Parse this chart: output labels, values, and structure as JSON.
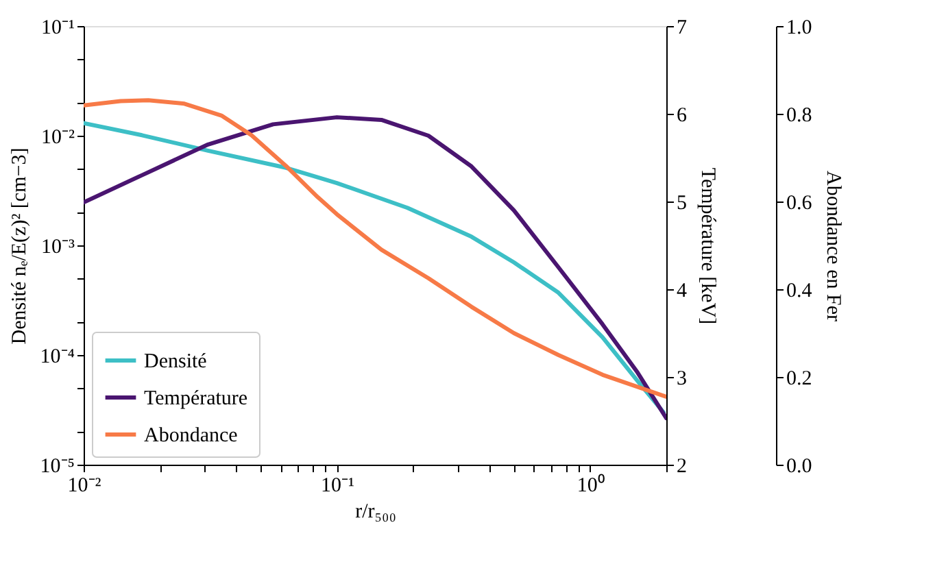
{
  "chart_data": {
    "type": "line",
    "xlabel": "r/r₅₀₀",
    "ylabel": "Densité nₑ/E(z)² [cm−3]",
    "y2label": "Température [keV]",
    "y3label": "Abondance en Fer",
    "log": "xy",
    "grid": false,
    "legend": "bottom left",
    "line_style": "solid",
    "marker": "none",
    "xlim": [
      0.01,
      2
    ],
    "xticks": [
      {
        "value": 0.01,
        "label": "10⁻²"
      },
      {
        "value": 0.02,
        "label": null
      },
      {
        "value": 0.03,
        "label": null
      },
      {
        "value": 0.04,
        "label": null
      },
      {
        "value": 0.05,
        "label": null
      },
      {
        "value": 0.06,
        "label": null
      },
      {
        "value": 0.07,
        "label": null
      },
      {
        "value": 0.08,
        "label": null
      },
      {
        "value": 0.09,
        "label": null
      },
      {
        "value": 0.1,
        "label": "10⁻¹"
      },
      {
        "value": 0.2,
        "label": null
      },
      {
        "value": 0.3,
        "label": null
      },
      {
        "value": 0.4,
        "label": null
      },
      {
        "value": 0.5,
        "label": null
      },
      {
        "value": 0.6,
        "label": null
      },
      {
        "value": 0.7,
        "label": null
      },
      {
        "value": 0.8,
        "label": null
      },
      {
        "value": 0.9,
        "label": null
      },
      {
        "value": 1,
        "label": "10⁰"
      },
      {
        "value": 2,
        "label": null
      }
    ],
    "ylim": [
      1e-05,
      0.1
    ],
    "yticks": [
      {
        "value": 1e-05,
        "label": "10⁻⁵"
      },
      {
        "value": 2e-05,
        "label": null
      },
      {
        "value": 5e-05,
        "label": null
      },
      {
        "value": 0.0001,
        "label": "10⁻⁴"
      },
      {
        "value": 0.0002,
        "label": null
      },
      {
        "value": 0.0005,
        "label": null
      },
      {
        "value": 0.001,
        "label": "10⁻³"
      },
      {
        "value": 0.002,
        "label": null
      },
      {
        "value": 0.005,
        "label": null
      },
      {
        "value": 0.01,
        "label": "10⁻²"
      },
      {
        "value": 0.02,
        "label": null
      },
      {
        "value": 0.05,
        "label": null
      },
      {
        "value": 0.1,
        "label": "10⁻¹"
      }
    ],
    "y2lim": [
      2,
      7
    ],
    "y2ticks": [
      2,
      3,
      4,
      5,
      6,
      7
    ],
    "y3lim": [
      0,
      1
    ],
    "y3ticks": [
      {
        "value": 0,
        "label": "0.0"
      },
      {
        "value": 0.2,
        "label": "0.2"
      },
      {
        "value": 0.4,
        "label": "0.4"
      },
      {
        "value": 0.6,
        "label": "0.6"
      },
      {
        "value": 0.8,
        "label": "0.8"
      },
      {
        "value": 1,
        "label": "1.0"
      }
    ],
    "series": [
      {
        "name": "Densité",
        "color": "#3dbfc6",
        "axis": "y",
        "x": [
          0.01,
          0.017,
          0.031,
          0.063,
          0.1,
          0.19,
          0.34,
          0.5,
          0.75,
          1.12,
          1.54,
          1.95
        ],
        "values": [
          0.013,
          0.0101,
          0.0073,
          0.0051,
          0.0037,
          0.0022,
          0.0012,
          0.0007,
          0.00037,
          0.000145,
          5.8e-05,
          3e-05
        ]
      },
      {
        "name": "Température",
        "color": "#4a1570",
        "axis": "y2",
        "x": [
          0.01,
          0.017,
          0.031,
          0.056,
          0.1,
          0.15,
          0.23,
          0.34,
          0.5,
          0.75,
          1.12,
          1.54,
          2.0
        ],
        "values": [
          4.99,
          5.3,
          5.65,
          5.88,
          5.96,
          5.93,
          5.75,
          5.4,
          4.9,
          4.25,
          3.6,
          3.05,
          2.53
        ]
      },
      {
        "name": "Abondance",
        "color": "#f77a47",
        "axis": "y3",
        "x": [
          0.01,
          0.014,
          0.018,
          0.025,
          0.035,
          0.046,
          0.063,
          0.084,
          0.1,
          0.15,
          0.23,
          0.34,
          0.5,
          0.75,
          1.12,
          2.0
        ],
        "values": [
          0.819,
          0.829,
          0.831,
          0.823,
          0.796,
          0.751,
          0.681,
          0.61,
          0.571,
          0.49,
          0.425,
          0.36,
          0.3,
          0.25,
          0.205,
          0.155
        ]
      }
    ]
  }
}
